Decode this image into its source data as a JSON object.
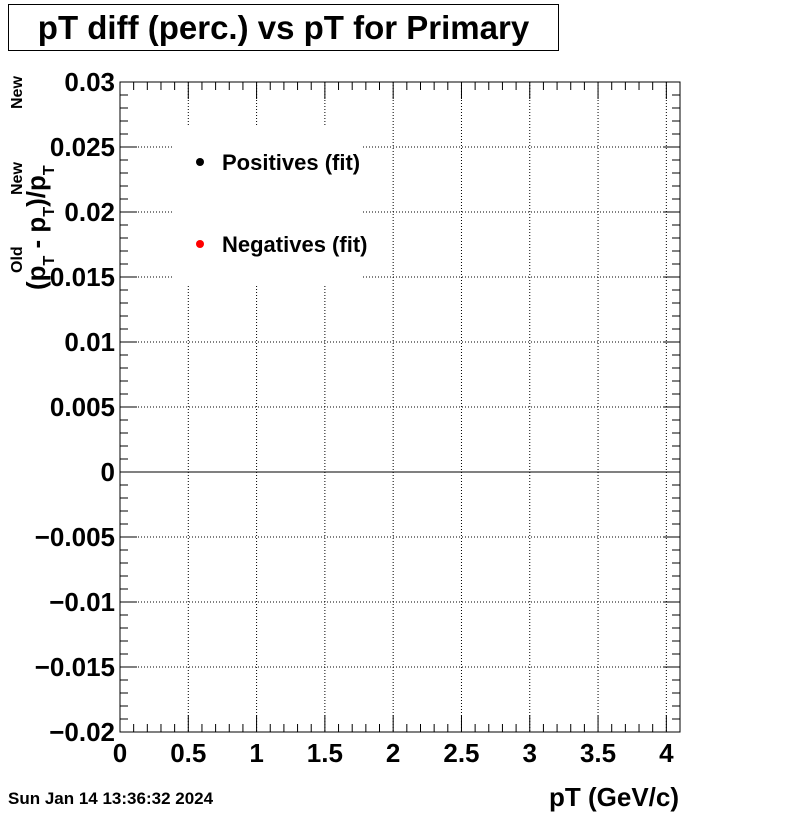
{
  "title": "pT diff (perc.) vs pT for Primary",
  "timestamp": "Sun Jan 14 13:36:32 2024",
  "chart_data": {
    "type": "scatter",
    "title": "pT diff (perc.) vs pT for Primary",
    "xlabel": "pT (GeV/c)",
    "ylabel_parts": {
      "open": "(p",
      "old_sup": "Old",
      "sub1": "T",
      "minus": " - p",
      "new_sup1": "New",
      "sub2": "T",
      "close_div": ")/p",
      "new_sup2": "New",
      "sub3": "T"
    },
    "xlim": [
      0,
      4.1
    ],
    "ylim": [
      -0.02,
      0.03
    ],
    "x_ticks": [
      0,
      0.5,
      1,
      1.5,
      2,
      2.5,
      3,
      3.5,
      4
    ],
    "x_tick_labels": [
      "0",
      "0.5",
      "1",
      "1.5",
      "2",
      "2.5",
      "3",
      "3.5",
      "4"
    ],
    "y_ticks": [
      -0.02,
      -0.015,
      -0.01,
      -0.005,
      0,
      0.005,
      0.01,
      0.015,
      0.02,
      0.025,
      0.03
    ],
    "y_tick_labels": [
      "−0.02",
      "−0.015",
      "−0.01",
      "−0.005",
      "0",
      "0.005",
      "0.01",
      "0.015",
      "0.02",
      "0.025",
      "0.03"
    ],
    "grid": true,
    "zero_line": true,
    "legend_position": "top-left",
    "series": [
      {
        "name": "Positives (fit)",
        "color": "#000000",
        "x": [],
        "y": []
      },
      {
        "name": "Negatives (fit)",
        "color": "#ff0000",
        "x": [],
        "y": []
      }
    ]
  }
}
